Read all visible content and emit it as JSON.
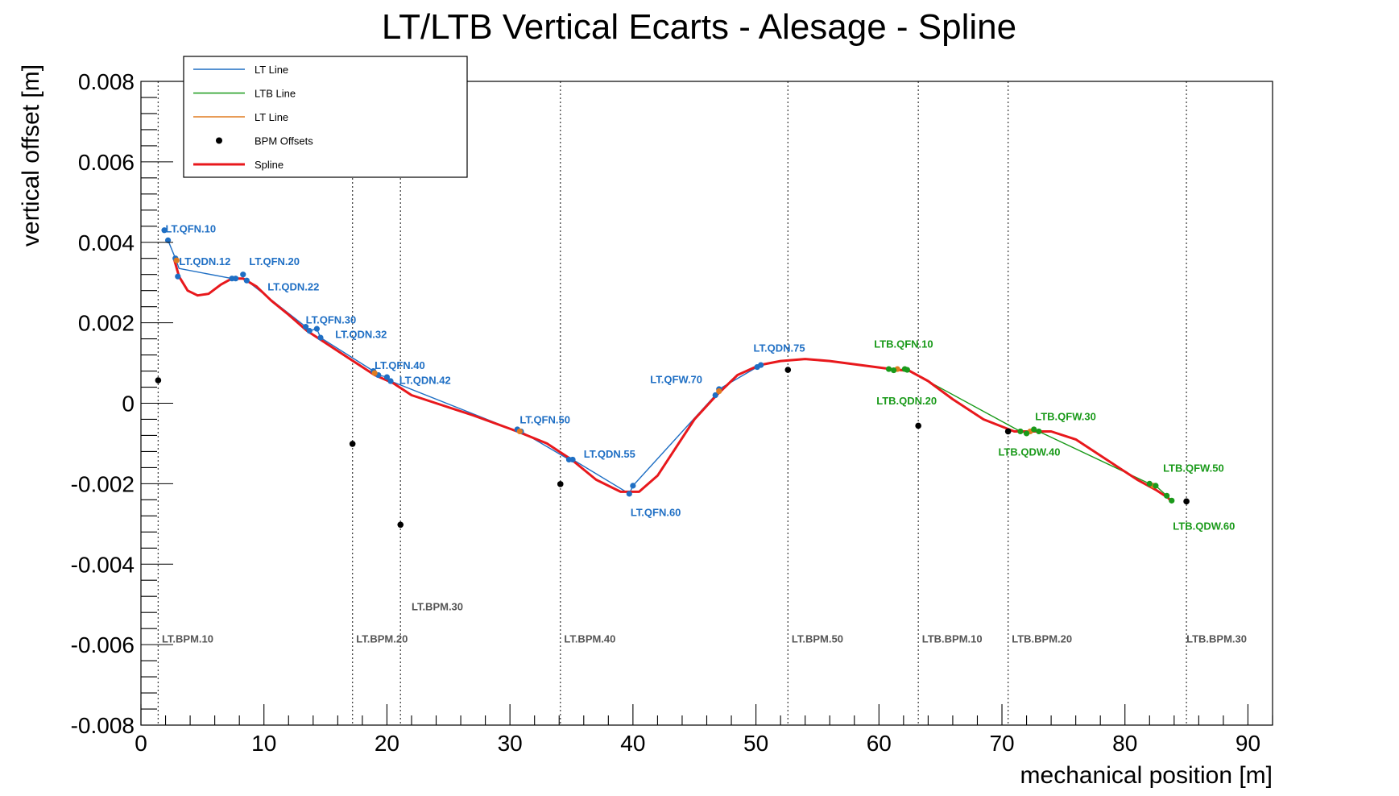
{
  "chart_data": {
    "type": "line",
    "title": "LT/LTB Vertical Ecarts - Alesage - Spline",
    "xlabel": "mechanical position [m]",
    "ylabel": "vertical offset [m]",
    "xlim": [
      0,
      92
    ],
    "ylim": [
      -0.008,
      0.008
    ],
    "x_ticks": [
      0,
      10,
      20,
      30,
      40,
      50,
      60,
      70,
      80,
      90
    ],
    "x_tick_labels": [
      "0",
      "10",
      "20",
      "30",
      "40",
      "50",
      "60",
      "70",
      "80",
      "90"
    ],
    "y_ticks": [
      -0.008,
      -0.006,
      -0.004,
      -0.002,
      0,
      0.002,
      0.004,
      0.006,
      0.008
    ],
    "y_tick_labels": [
      "-0.008",
      "-0.006",
      "-0.004",
      "-0.002",
      "0",
      "0.002",
      "0.004",
      "0.006",
      "0.008"
    ],
    "grid": false,
    "legend_position": "top-left",
    "legend": [
      {
        "label": "LT Line",
        "kind": "line",
        "color": "#1f6fc4"
      },
      {
        "label": "LTB Line",
        "kind": "line",
        "color": "#1a9a1a"
      },
      {
        "label": "LT Line",
        "kind": "line",
        "color": "#e07b20"
      },
      {
        "label": "BPM Offsets",
        "kind": "marker",
        "color": "#000000"
      },
      {
        "label": "Spline",
        "kind": "thick-line",
        "color": "#e8181c"
      }
    ],
    "series": [
      {
        "name": "LT Line",
        "color": "#1f6fc4",
        "x": [
          2.2,
          2.8,
          3.1,
          7.4,
          7.7,
          8.3,
          8.6,
          13.4,
          13.7,
          14.3,
          14.6,
          18.9,
          19.3,
          20.0,
          20.3,
          30.6,
          30.9,
          34.8,
          35.1,
          39.7,
          40.0,
          46.7,
          47.0,
          50.1,
          50.4
        ],
        "y": [
          0.00405,
          0.0036,
          0.00335,
          0.0031,
          0.0031,
          0.0031,
          0.00305,
          0.0019,
          0.0018,
          0.00185,
          0.00163,
          0.0008,
          0.0007,
          0.00065,
          0.00055,
          -0.0007,
          -0.0007,
          -0.0014,
          -0.0014,
          -0.00225,
          -0.00205,
          0.0002,
          0.00035,
          0.0009,
          0.00095
        ]
      },
      {
        "name": "LTB Line",
        "color": "#1a9a1a",
        "x": [
          60.8,
          61.2,
          62.1,
          62.3,
          71.5,
          72.0,
          72.6,
          73.0,
          82.0,
          82.5,
          83.4,
          83.8
        ],
        "y": [
          0.00085,
          0.00082,
          0.00085,
          0.00083,
          -0.0007,
          -0.00075,
          -0.00065,
          -0.0007,
          -0.002,
          -0.00205,
          -0.0023,
          -0.00242
        ]
      },
      {
        "name": "Spline",
        "color": "#e8181c",
        "x": [
          2.7,
          3.1,
          3.8,
          4.6,
          5.5,
          6.5,
          7.4,
          8.3,
          9.4,
          10.6,
          12.0,
          13.5,
          15.0,
          17.0,
          19.0,
          20.5,
          22.0,
          24.0,
          27.0,
          30.6,
          33.0,
          35.0,
          37.0,
          39.0,
          40.5,
          42.0,
          43.5,
          45.0,
          46.8,
          48.5,
          50.3,
          52.0,
          54.0,
          56.0,
          58.5,
          61.0,
          62.5,
          64.0,
          66.0,
          68.5,
          71.0,
          72.5,
          74.0,
          76.0,
          78.5,
          81.0,
          82.5,
          83.5,
          83.8
        ],
        "y": [
          0.00358,
          0.00315,
          0.0028,
          0.00268,
          0.00272,
          0.00295,
          0.0031,
          0.0031,
          0.0029,
          0.00255,
          0.0022,
          0.0018,
          0.0015,
          0.0011,
          0.0007,
          0.0005,
          0.0002,
          0.0,
          -0.0003,
          -0.0007,
          -0.001,
          -0.0014,
          -0.0019,
          -0.0022,
          -0.0022,
          -0.0018,
          -0.0011,
          -0.0004,
          0.0002,
          0.0007,
          0.00095,
          0.00105,
          0.0011,
          0.00105,
          0.00095,
          0.00085,
          0.0008,
          0.00055,
          0.0001,
          -0.0004,
          -0.0007,
          -0.0007,
          -0.0007,
          -0.0009,
          -0.0014,
          -0.0019,
          -0.00215,
          -0.00235,
          -0.00245
        ]
      }
    ],
    "element_markers": [
      {
        "color": "#1f6fc4",
        "x": [
          1.9,
          2.2,
          2.8,
          3.0,
          7.4,
          7.7,
          8.3,
          8.6,
          13.4,
          13.7,
          14.3,
          14.6,
          18.9,
          19.3,
          20.0,
          20.3,
          30.6,
          30.9,
          34.8,
          35.1,
          39.7,
          40.0,
          46.7,
          47.0,
          50.1,
          50.4
        ],
        "y": [
          0.0043,
          0.00405,
          0.0036,
          0.00315,
          0.0031,
          0.0031,
          0.0032,
          0.00305,
          0.0019,
          0.0018,
          0.00185,
          0.00163,
          0.0008,
          0.0007,
          0.00065,
          0.00055,
          -0.00065,
          -0.0007,
          -0.0014,
          -0.0014,
          -0.00225,
          -0.00205,
          0.0002,
          0.00035,
          0.0009,
          0.00095
        ]
      },
      {
        "color": "#e07b20",
        "x": [
          2.9,
          19.0,
          30.8,
          47.0,
          61.5,
          72.3,
          82.3
        ],
        "y": [
          0.00355,
          0.00075,
          -0.0007,
          0.0003,
          0.00085,
          -0.0007,
          -0.00205
        ]
      },
      {
        "color": "#1a9a1a",
        "x": [
          60.8,
          61.2,
          62.1,
          62.3,
          71.5,
          72.0,
          72.6,
          73.0,
          82.0,
          82.5,
          83.4,
          83.8
        ],
        "y": [
          0.00085,
          0.00082,
          0.00085,
          0.00083,
          -0.0007,
          -0.00075,
          -0.00065,
          -0.0007,
          -0.002,
          -0.00205,
          -0.0023,
          -0.00242
        ]
      }
    ],
    "bpm_offsets": {
      "color": "#000000",
      "x": [
        1.4,
        17.2,
        21.1,
        34.1,
        52.6,
        63.2,
        70.5,
        85.0
      ],
      "y": [
        0.00057,
        -0.00101,
        -0.00302,
        -0.00201,
        0.00083,
        -0.00056,
        -0.0007,
        -0.00244
      ]
    },
    "bpm_lines": [
      {
        "x": 1.4,
        "label": "LT.BPM.10",
        "label_x": 1.7,
        "label_y": -0.00595
      },
      {
        "x": 17.2,
        "label": "LT.BPM.20",
        "label_x": 17.5,
        "label_y": -0.00595
      },
      {
        "x": 21.1,
        "label": "LT.BPM.30",
        "label_x": 22.0,
        "label_y": -0.00515
      },
      {
        "x": 34.1,
        "label": "LT.BPM.40",
        "label_x": 34.4,
        "label_y": -0.00595
      },
      {
        "x": 52.6,
        "label": "LT.BPM.50",
        "label_x": 52.9,
        "label_y": -0.00595
      },
      {
        "x": 63.2,
        "label": "LTB.BPM.10",
        "label_x": 63.5,
        "label_y": -0.00595
      },
      {
        "x": 70.5,
        "label": "LTB.BPM.20",
        "label_x": 70.8,
        "label_y": -0.00595
      },
      {
        "x": 85.0,
        "label": "LTB.BPM.30",
        "label_x": 85.0,
        "label_y": -0.00595
      }
    ],
    "element_labels": [
      {
        "text": "LT.QFN.10",
        "x": 2.0,
        "y": 0.00425,
        "color": "#1f6fc4"
      },
      {
        "text": "LT.QDN.12",
        "x": 3.1,
        "y": 0.00343,
        "color": "#1f6fc4"
      },
      {
        "text": "LT.QFN.20",
        "x": 8.8,
        "y": 0.00343,
        "color": "#1f6fc4"
      },
      {
        "text": "LT.QDN.22",
        "x": 10.3,
        "y": 0.0028,
        "color": "#1f6fc4"
      },
      {
        "text": "LT.QFN.30",
        "x": 13.4,
        "y": 0.00198,
        "color": "#1f6fc4"
      },
      {
        "text": "LT.QDN.32",
        "x": 15.8,
        "y": 0.00162,
        "color": "#1f6fc4"
      },
      {
        "text": "LT.QFN.40",
        "x": 19.0,
        "y": 0.00085,
        "color": "#1f6fc4"
      },
      {
        "text": "LT.QDN.42",
        "x": 21.0,
        "y": 0.00048,
        "color": "#1f6fc4"
      },
      {
        "text": "LT.QFN.50",
        "x": 30.8,
        "y": -0.0005,
        "color": "#1f6fc4"
      },
      {
        "text": "LT.QDN.55",
        "x": 36.0,
        "y": -0.00135,
        "color": "#1f6fc4"
      },
      {
        "text": "LT.QFN.60",
        "x": 39.8,
        "y": -0.0028,
        "color": "#1f6fc4"
      },
      {
        "text": "LT.QFW.70",
        "x": 41.4,
        "y": 0.0005,
        "color": "#1f6fc4"
      },
      {
        "text": "LT.QDN.75",
        "x": 49.8,
        "y": 0.00128,
        "color": "#1f6fc4"
      },
      {
        "text": "LTB.QFN.10",
        "x": 59.6,
        "y": 0.00138,
        "color": "#1a9a1a"
      },
      {
        "text": "LTB.QDN.20",
        "x": 59.8,
        "y": -3e-05,
        "color": "#1a9a1a"
      },
      {
        "text": "LTB.QFW.30",
        "x": 72.7,
        "y": -0.00042,
        "color": "#1a9a1a"
      },
      {
        "text": "LTB.QDW.40",
        "x": 69.7,
        "y": -0.0013,
        "color": "#1a9a1a"
      },
      {
        "text": "LTB.QFW.50",
        "x": 83.1,
        "y": -0.0017,
        "color": "#1a9a1a"
      },
      {
        "text": "LTB.QDW.60",
        "x": 83.9,
        "y": -0.00314,
        "color": "#1a9a1a"
      }
    ]
  }
}
